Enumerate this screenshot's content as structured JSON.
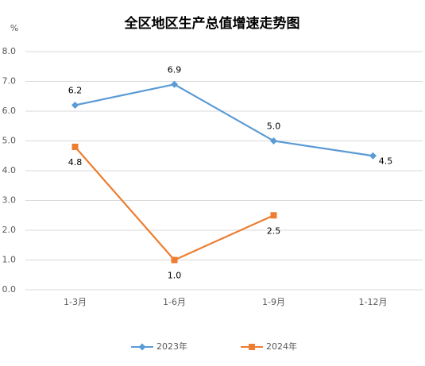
{
  "chart_data": {
    "type": "line",
    "title": "全区地区生产总值增速走势图",
    "y_unit": "%",
    "categories": [
      "1-3月",
      "1-6月",
      "1-9月",
      "1-12月"
    ],
    "series": [
      {
        "name": "2023年",
        "color": "#5b9bd5",
        "marker": "diamond",
        "values": [
          6.2,
          6.9,
          5.0,
          4.5
        ],
        "value_labels": [
          "6.2",
          "6.9",
          "5.0",
          "4.5"
        ]
      },
      {
        "name": "2024年",
        "color": "#ed7d31",
        "marker": "square",
        "values": [
          4.8,
          1.0,
          2.5,
          null
        ],
        "value_labels": [
          "4.8",
          "1.0",
          "2.5",
          null
        ]
      }
    ],
    "ylim": [
      0,
      8
    ],
    "yticks": [
      {
        "value": 0,
        "label": "0.0"
      },
      {
        "value": 1,
        "label": "1.0"
      },
      {
        "value": 2,
        "label": "2.0"
      },
      {
        "value": 3,
        "label": "3.0"
      },
      {
        "value": 4,
        "label": "4.0"
      },
      {
        "value": 5,
        "label": "5.0"
      },
      {
        "value": 6,
        "label": "6.0"
      },
      {
        "value": 7,
        "label": "7.0"
      },
      {
        "value": 8,
        "label": "8.0"
      }
    ],
    "grid": true,
    "legend": "bottom"
  }
}
